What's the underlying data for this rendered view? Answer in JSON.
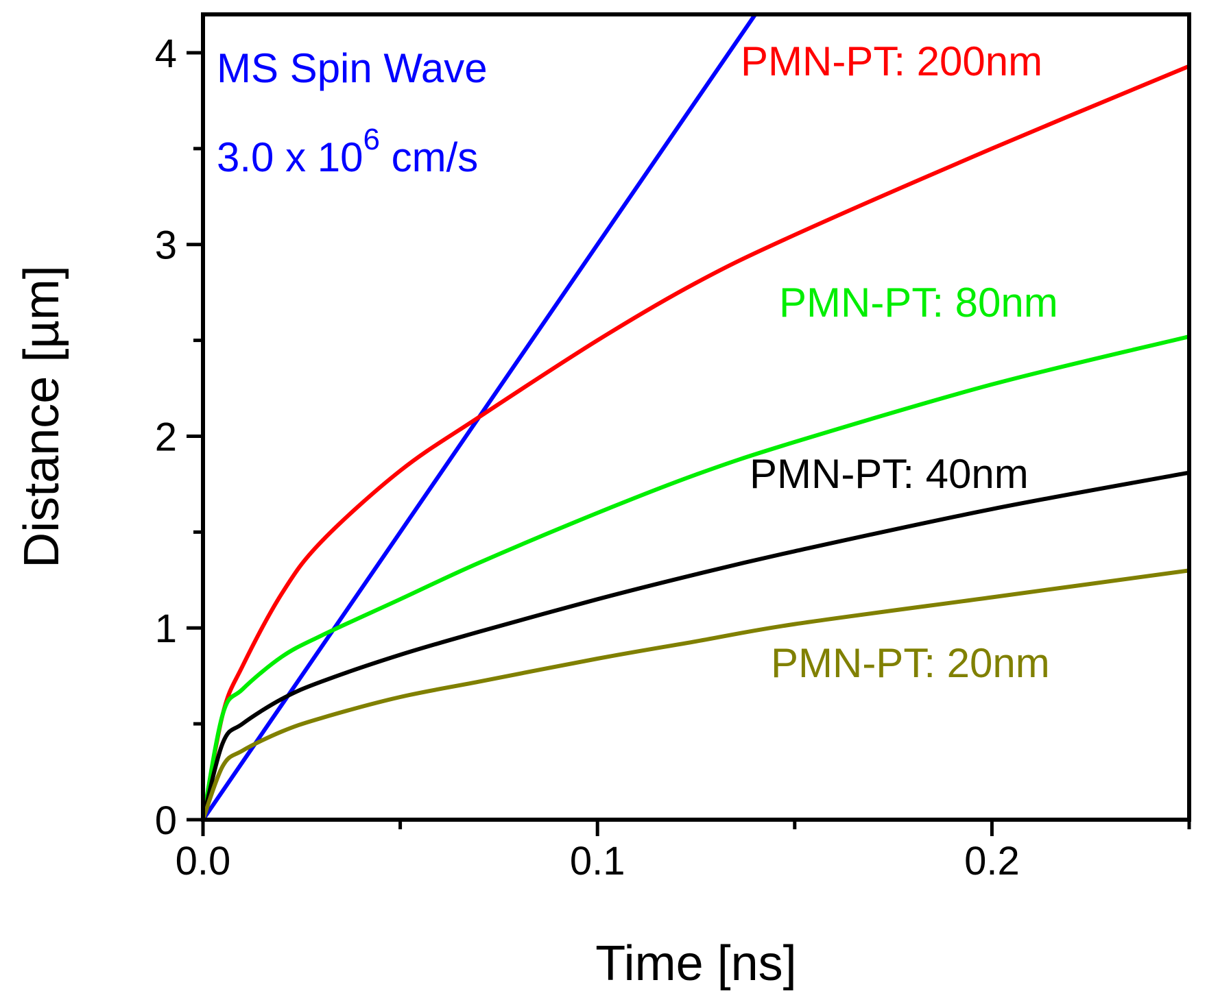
{
  "chart_data": {
    "type": "line",
    "title": "",
    "xlabel": "Time [ns]",
    "ylabel": "Distance [µm]",
    "xlim": [
      0,
      0.25
    ],
    "ylim": [
      0,
      4.2
    ],
    "xticks": [
      0.0,
      0.1,
      0.2
    ],
    "xtick_labels": [
      "0.0",
      "0.1",
      "0.2"
    ],
    "xminor_ticks": [
      0.05,
      0.15,
      0.25
    ],
    "yticks": [
      0,
      1,
      2,
      3,
      4
    ],
    "ytick_labels": [
      "0",
      "1",
      "2",
      "3",
      "4"
    ],
    "yminor_ticks": [
      0.5,
      1.5,
      2.5,
      3.5
    ],
    "grid": false,
    "annotations": {
      "line1": "MS Spin Wave",
      "line2_base": "3.0 x 10",
      "line2_exp": "6",
      "line2_unit": " cm/s",
      "color": "#0000ff"
    },
    "series": [
      {
        "name": "MS Spin Wave",
        "color": "#0000ff",
        "kind": "linear",
        "x": [
          0,
          0.05,
          0.1,
          0.14
        ],
        "y": [
          0,
          1.5,
          3.0,
          4.2
        ]
      },
      {
        "name": "PMN-PT: 200nm",
        "label": "PMN-PT: 200nm",
        "color": "#ff0000",
        "x": [
          0,
          0.005,
          0.01,
          0.02,
          0.03,
          0.05,
          0.07,
          0.1,
          0.125,
          0.15,
          0.2,
          0.25
        ],
        "y": [
          0,
          0.55,
          0.8,
          1.18,
          1.45,
          1.82,
          2.1,
          2.5,
          2.8,
          3.05,
          3.5,
          3.93
        ]
      },
      {
        "name": "PMN-PT: 80nm",
        "label": "PMN-PT: 80nm",
        "color": "#00ee00",
        "x": [
          0,
          0.005,
          0.01,
          0.02,
          0.03,
          0.05,
          0.07,
          0.1,
          0.125,
          0.15,
          0.2,
          0.25
        ],
        "y": [
          0,
          0.55,
          0.68,
          0.85,
          0.96,
          1.15,
          1.34,
          1.6,
          1.8,
          1.97,
          2.27,
          2.52
        ]
      },
      {
        "name": "PMN-PT: 40nm",
        "label": "PMN-PT: 40nm",
        "color": "#000000",
        "x": [
          0,
          0.005,
          0.01,
          0.02,
          0.03,
          0.05,
          0.07,
          0.1,
          0.125,
          0.15,
          0.2,
          0.25
        ],
        "y": [
          0,
          0.4,
          0.5,
          0.63,
          0.72,
          0.86,
          0.98,
          1.15,
          1.28,
          1.4,
          1.62,
          1.81
        ]
      },
      {
        "name": "PMN-PT: 20nm",
        "label": "PMN-PT: 20nm",
        "color": "#808000",
        "x": [
          0,
          0.005,
          0.01,
          0.02,
          0.03,
          0.05,
          0.07,
          0.1,
          0.125,
          0.15,
          0.2,
          0.25
        ],
        "y": [
          0,
          0.28,
          0.36,
          0.46,
          0.53,
          0.64,
          0.72,
          0.84,
          0.93,
          1.02,
          1.16,
          1.3
        ]
      }
    ]
  }
}
